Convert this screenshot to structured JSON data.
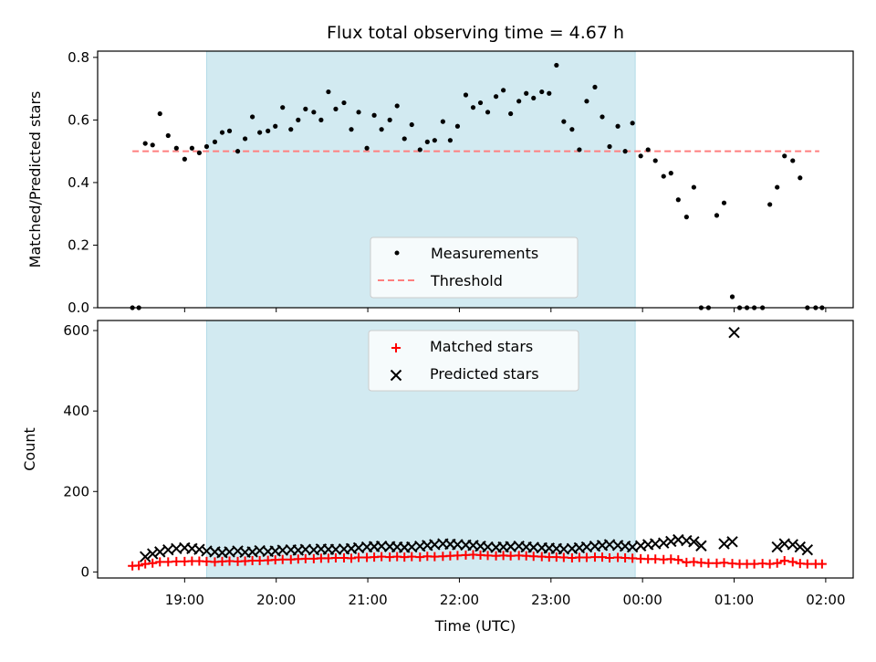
{
  "chart_data": [
    {
      "type": "scatter",
      "title": "Flux total observing time = 4.67 h",
      "xlabel": "",
      "ylabel": "Matched/Predicted stars",
      "ylim": [
        0,
        0.82
      ],
      "yticks": [
        "0.0",
        "0.2",
        "0.4",
        "0.6",
        "0.8"
      ],
      "ytick_values": [
        0,
        0.2,
        0.4,
        0.6,
        0.8
      ],
      "xlim_hours": [
        18.05,
        26.3
      ],
      "xticks_hours": [
        19,
        20,
        21,
        22,
        23,
        24,
        25,
        26
      ],
      "shaded_region_hours": [
        19.24,
        23.92
      ],
      "shade_color": "#add8e6",
      "threshold": {
        "name": "Threshold",
        "value": 0.5,
        "x_start": 18.43,
        "x_end": 25.93,
        "color": "#ff7f7f"
      },
      "legend": {
        "entries": [
          "Measurements",
          "Threshold"
        ],
        "placement": "lower-center"
      },
      "series": [
        {
          "name": "Measurements",
          "color": "#000000",
          "x": [
            18.43,
            18.5,
            18.57,
            18.65,
            18.73,
            18.82,
            18.91,
            19.0,
            19.08,
            19.16,
            19.24,
            19.33,
            19.41,
            19.49,
            19.58,
            19.66,
            19.74,
            19.82,
            19.91,
            19.99,
            20.07,
            20.16,
            20.24,
            20.32,
            20.41,
            20.49,
            20.57,
            20.65,
            20.74,
            20.82,
            20.9,
            20.99,
            21.07,
            21.15,
            21.24,
            21.32,
            21.4,
            21.48,
            21.57,
            21.65,
            21.73,
            21.82,
            21.9,
            21.98,
            22.07,
            22.15,
            22.23,
            22.31,
            22.4,
            22.48,
            22.56,
            22.65,
            22.73,
            22.81,
            22.9,
            22.98,
            23.06,
            23.14,
            23.23,
            23.31,
            23.39,
            23.48,
            23.56,
            23.64,
            23.73,
            23.81,
            23.89,
            23.98,
            24.06,
            24.14,
            24.23,
            24.31,
            24.39,
            24.48,
            24.56,
            24.64,
            24.72,
            24.81,
            24.89,
            24.98,
            25.06,
            25.14,
            25.22,
            25.31,
            25.39,
            25.47,
            25.55,
            25.64,
            25.72,
            25.8,
            25.89,
            25.96
          ],
          "y": [
            0.0,
            0.0,
            0.525,
            0.52,
            0.62,
            0.55,
            0.51,
            0.475,
            0.51,
            0.495,
            0.515,
            0.53,
            0.56,
            0.565,
            0.5,
            0.54,
            0.61,
            0.56,
            0.565,
            0.58,
            0.64,
            0.57,
            0.6,
            0.635,
            0.625,
            0.6,
            0.69,
            0.635,
            0.655,
            0.57,
            0.625,
            0.51,
            0.615,
            0.57,
            0.6,
            0.645,
            0.54,
            0.585,
            0.505,
            0.53,
            0.535,
            0.595,
            0.535,
            0.58,
            0.68,
            0.64,
            0.655,
            0.625,
            0.675,
            0.695,
            0.62,
            0.66,
            0.685,
            0.67,
            0.69,
            0.685,
            0.775,
            0.595,
            0.57,
            0.505,
            0.66,
            0.705,
            0.61,
            0.515,
            0.58,
            0.5,
            0.59,
            0.485,
            0.505,
            0.47,
            0.42,
            0.43,
            0.345,
            0.29,
            0.385,
            0.0,
            0.0,
            0.295,
            0.335,
            0.035,
            0.0,
            0.0,
            0.0,
            0.0,
            0.33,
            0.385,
            0.485,
            0.47,
            0.415,
            0.0,
            0.0,
            0.0
          ]
        }
      ]
    },
    {
      "type": "scatter",
      "title": "",
      "xlabel": "Time (UTC)",
      "ylabel": "Count",
      "ylim": [
        -15,
        625
      ],
      "yticks": [
        "0",
        "200",
        "400",
        "600"
      ],
      "ytick_values": [
        0,
        200,
        400,
        600
      ],
      "xlim_hours": [
        18.05,
        26.3
      ],
      "xticks": [
        "19:00",
        "20:00",
        "21:00",
        "22:00",
        "23:00",
        "00:00",
        "01:00",
        "02:00"
      ],
      "xticks_hours": [
        19,
        20,
        21,
        22,
        23,
        24,
        25,
        26
      ],
      "shaded_region_hours": [
        19.24,
        23.92
      ],
      "shade_color": "#add8e6",
      "legend": {
        "entries": [
          "Matched stars",
          "Predicted stars"
        ],
        "placement": "upper-center"
      },
      "series": [
        {
          "name": "Matched stars",
          "marker": "plus",
          "connected": true,
          "color": "#ff0000",
          "x": [
            18.43,
            18.5,
            18.57,
            18.65,
            18.73,
            18.82,
            18.91,
            19.0,
            19.08,
            19.16,
            19.24,
            19.33,
            19.41,
            19.49,
            19.58,
            19.66,
            19.74,
            19.82,
            19.91,
            19.99,
            20.07,
            20.16,
            20.24,
            20.32,
            20.41,
            20.49,
            20.57,
            20.65,
            20.74,
            20.82,
            20.9,
            20.99,
            21.07,
            21.15,
            21.24,
            21.32,
            21.4,
            21.48,
            21.57,
            21.65,
            21.73,
            21.82,
            21.9,
            21.98,
            22.07,
            22.15,
            22.23,
            22.31,
            22.4,
            22.48,
            22.56,
            22.65,
            22.73,
            22.81,
            22.9,
            22.98,
            23.06,
            23.14,
            23.23,
            23.31,
            23.39,
            23.48,
            23.56,
            23.64,
            23.73,
            23.81,
            23.89,
            23.98,
            24.06,
            24.14,
            24.23,
            24.31,
            24.39,
            24.48,
            24.56,
            24.64,
            24.72,
            24.81,
            24.89,
            24.98,
            25.06,
            25.14,
            25.22,
            25.31,
            25.39,
            25.47,
            25.55,
            25.64,
            25.72,
            25.8,
            25.89,
            25.96
          ],
          "y": [
            15,
            16,
            20,
            22,
            25,
            25,
            26,
            26,
            27,
            27,
            26,
            25,
            26,
            27,
            26,
            27,
            28,
            28,
            29,
            30,
            31,
            31,
            32,
            33,
            33,
            34,
            34,
            35,
            35,
            34,
            36,
            36,
            37,
            38,
            37,
            38,
            37,
            38,
            37,
            39,
            38,
            39,
            40,
            41,
            42,
            43,
            42,
            41,
            40,
            41,
            40,
            41,
            40,
            39,
            38,
            37,
            37,
            36,
            35,
            36,
            36,
            37,
            37,
            35,
            36,
            35,
            34,
            33,
            32,
            32,
            31,
            32,
            30,
            24,
            25,
            23,
            22,
            22,
            23,
            21,
            20,
            20,
            20,
            21,
            20,
            22,
            28,
            25,
            21,
            20,
            20,
            20
          ]
        },
        {
          "name": "Predicted stars",
          "marker": "x",
          "color": "#000000",
          "x": [
            18.57,
            18.65,
            18.73,
            18.82,
            18.91,
            19.0,
            19.08,
            19.16,
            19.24,
            19.33,
            19.41,
            19.49,
            19.58,
            19.66,
            19.74,
            19.82,
            19.91,
            19.99,
            20.07,
            20.16,
            20.24,
            20.32,
            20.41,
            20.49,
            20.57,
            20.65,
            20.74,
            20.82,
            20.9,
            20.99,
            21.07,
            21.15,
            21.24,
            21.32,
            21.4,
            21.48,
            21.57,
            21.65,
            21.73,
            21.82,
            21.9,
            21.98,
            22.07,
            22.15,
            22.23,
            22.31,
            22.4,
            22.48,
            22.56,
            22.65,
            22.73,
            22.81,
            22.9,
            22.98,
            23.06,
            23.14,
            23.23,
            23.31,
            23.39,
            23.48,
            23.56,
            23.64,
            23.73,
            23.81,
            23.89,
            23.98,
            24.06,
            24.14,
            24.23,
            24.31,
            24.39,
            24.48,
            24.56,
            24.64,
            24.89,
            24.98,
            25.0,
            25.47,
            25.55,
            25.64,
            25.72,
            25.8
          ],
          "y": [
            38,
            45,
            50,
            55,
            58,
            60,
            58,
            56,
            52,
            50,
            48,
            50,
            52,
            49,
            50,
            53,
            51,
            52,
            54,
            55,
            54,
            56,
            55,
            57,
            56,
            56,
            57,
            58,
            60,
            62,
            63,
            64,
            63,
            62,
            61,
            62,
            64,
            66,
            68,
            70,
            69,
            68,
            67,
            66,
            64,
            62,
            61,
            62,
            63,
            64,
            62,
            61,
            60,
            59,
            58,
            57,
            58,
            60,
            62,
            64,
            66,
            68,
            66,
            64,
            62,
            65,
            68,
            70,
            72,
            76,
            80,
            78,
            75,
            65,
            70,
            75,
            595,
            62,
            70,
            68,
            62,
            55
          ]
        }
      ]
    }
  ]
}
